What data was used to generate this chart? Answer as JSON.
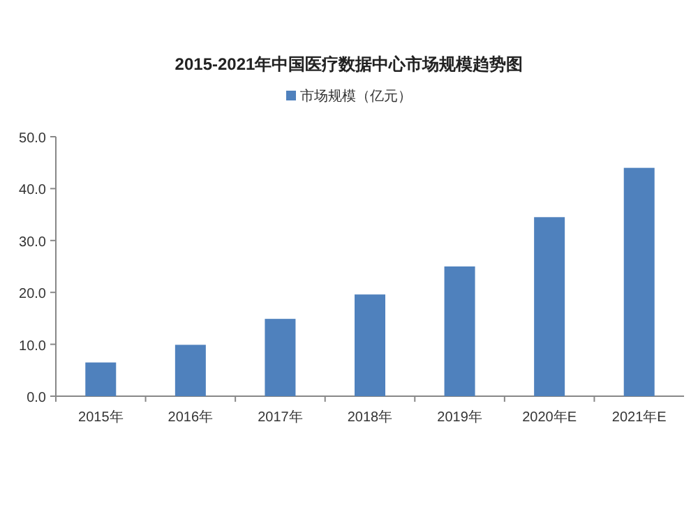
{
  "chart_data": {
    "type": "bar",
    "title": "2015-2021年中国医疗数据中心市场规模趋势图",
    "categories": [
      "2015年",
      "2016年",
      "2017年",
      "2018年",
      "2019年",
      "2020年E",
      "2021年E"
    ],
    "series": [
      {
        "name": "市场规模（亿元）",
        "color": "#4f81bd",
        "values": [
          6.5,
          9.9,
          14.9,
          19.6,
          25.0,
          34.5,
          44.0
        ]
      }
    ],
    "ylim": [
      0,
      50
    ],
    "yticks": [
      {
        "value": 0,
        "label": "0.0"
      },
      {
        "value": 10,
        "label": "10.0"
      },
      {
        "value": 20,
        "label": "20.0"
      },
      {
        "value": 30,
        "label": "30.0"
      },
      {
        "value": 40,
        "label": "40.0"
      },
      {
        "value": 50,
        "label": "50.0"
      }
    ],
    "grid": false,
    "legend": "top"
  }
}
